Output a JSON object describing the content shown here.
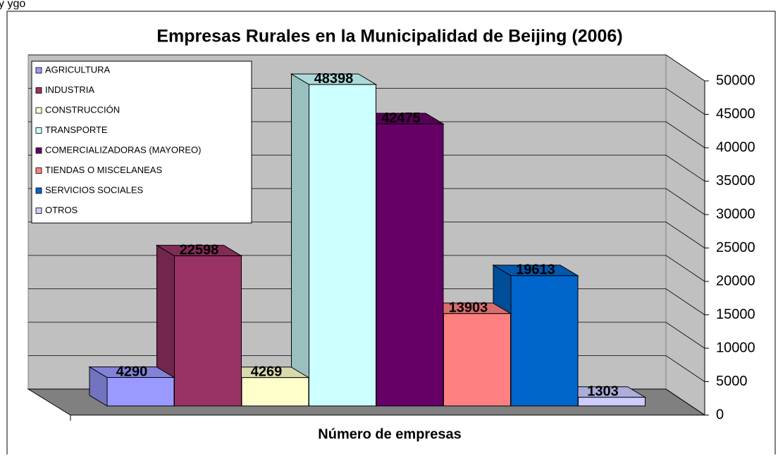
{
  "header_fragment": "y ygo",
  "chart_data": {
    "type": "bar3d",
    "title": "Empresas Rurales en la Municipalidad  de Beijing (2006)",
    "x_label": "Número de empresas",
    "series": [
      {
        "name": "AGRICULTURA",
        "color": "#9999ff",
        "values": [
          4290
        ]
      },
      {
        "name": "INDUSTRIA",
        "color": "#993366",
        "values": [
          22598
        ]
      },
      {
        "name": "CONSTRUCCIÓN",
        "color": "#ffffcc",
        "values": [
          4269
        ]
      },
      {
        "name": "TRANSPORTE",
        "color": "#ccffff",
        "values": [
          48398
        ]
      },
      {
        "name": "COMERCIALIZADORAS (MAYOREO)",
        "color": "#660066",
        "values": [
          42475
        ]
      },
      {
        "name": "TIENDAS O MISCELANEAS",
        "color": "#ff8080",
        "values": [
          13903
        ]
      },
      {
        "name": "SERVICIOS SOCIALES",
        "color": "#0066cc",
        "values": [
          19613
        ]
      },
      {
        "name": "OTROS",
        "color": "#ccccff",
        "values": [
          1303
        ]
      }
    ],
    "ylim": [
      0,
      50000
    ],
    "yticks": [
      0,
      5000,
      10000,
      15000,
      20000,
      25000,
      30000,
      35000,
      40000,
      45000,
      50000
    ],
    "grid": true,
    "legend": "top-left"
  }
}
